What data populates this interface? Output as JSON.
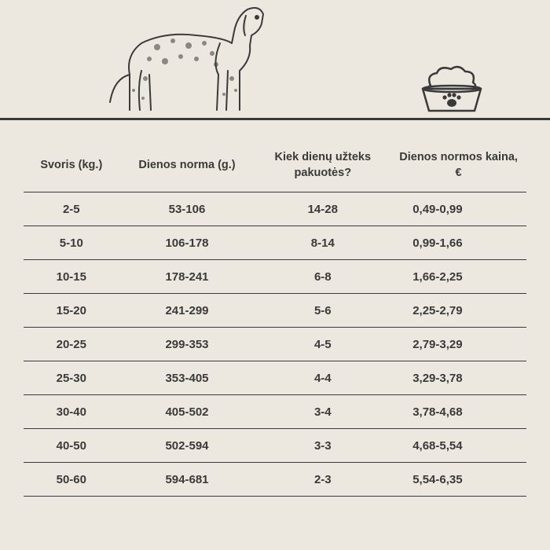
{
  "hero": {
    "dog_stroke": "#3a3a3a",
    "bowl_stroke": "#3a3a3a",
    "background": "#ece8df",
    "line_color": "#3a3a3a"
  },
  "table": {
    "columns": [
      "Svoris (kg.)",
      "Dienos norma (g.)",
      "Kiek dienų užteks pakuotės?",
      "Dienos normos kaina, €"
    ],
    "rows": [
      [
        "2-5",
        "53-106",
        "14-28",
        "0,49-0,99"
      ],
      [
        "5-10",
        "106-178",
        "8-14",
        "0,99-1,66"
      ],
      [
        "10-15",
        "178-241",
        "6-8",
        "1,66-2,25"
      ],
      [
        "15-20",
        "241-299",
        "5-6",
        "2,25-2,79"
      ],
      [
        "20-25",
        "299-353",
        "4-5",
        "2,79-3,29"
      ],
      [
        "25-30",
        "353-405",
        "4-4",
        "3,29-3,78"
      ],
      [
        "30-40",
        "405-502",
        "3-4",
        "3,78-4,68"
      ],
      [
        "40-50",
        "502-594",
        "3-3",
        "4,68-5,54"
      ],
      [
        "50-60",
        "594-681",
        "2-3",
        "5,54-6,35"
      ]
    ],
    "header_fontsize": 14.5,
    "cell_fontsize": 15,
    "border_color": "#3a3a3a",
    "text_color": "#3a3a3a",
    "col_widths_pct": [
      19,
      27,
      27,
      27
    ]
  }
}
